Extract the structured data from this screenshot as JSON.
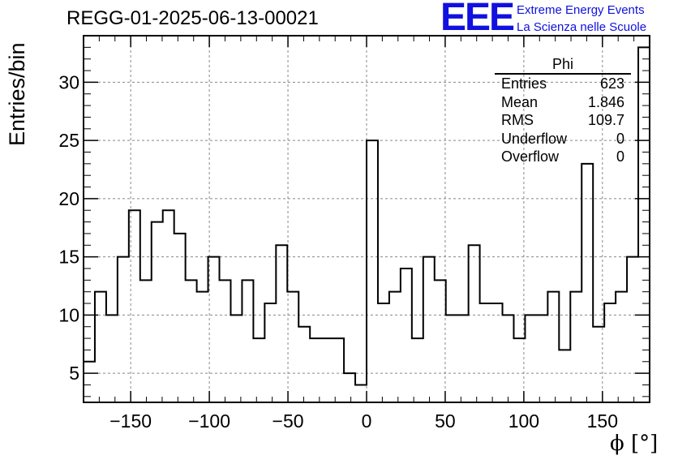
{
  "header": {
    "run_title": "REGG-01-2025-06-13-00021",
    "logo_text": "EEE",
    "logo_line1": "Extreme Energy Events",
    "logo_line2": "La Scienza nelle Scuole"
  },
  "stats_box": {
    "title": "Phi",
    "rows": [
      {
        "label": "Entries",
        "value": "623"
      },
      {
        "label": "Mean",
        "value": "1.846"
      },
      {
        "label": "RMS",
        "value": "109.7"
      },
      {
        "label": "Underflow",
        "value": "0"
      },
      {
        "label": "Overflow",
        "value": "0"
      }
    ]
  },
  "colors": {
    "line": "#000000",
    "grid": "#888888",
    "logo": "#1010e0"
  },
  "chart_data": {
    "type": "histogram",
    "title": "REGG-01-2025-06-13-00021",
    "xlabel": "ϕ [°]",
    "ylabel": "Entries/bin",
    "xlim": [
      -180,
      180
    ],
    "ylim": [
      2.5,
      34
    ],
    "grid": true,
    "bin_width": 7.2,
    "bin_edges_start": -180,
    "values": [
      6,
      12,
      10,
      15,
      19,
      13,
      18,
      19,
      17,
      13,
      12,
      15,
      13,
      10,
      13,
      8,
      11,
      16,
      12,
      9,
      8,
      8,
      8,
      5,
      4,
      25,
      11,
      12,
      14,
      8,
      15,
      13,
      10,
      10,
      16,
      11,
      11,
      10,
      8,
      10,
      10,
      12,
      7,
      12,
      23,
      9,
      11,
      12,
      15,
      33
    ],
    "x_ticks": [
      -150,
      -100,
      -50,
      0,
      50,
      100,
      150
    ],
    "x_tick_labels": [
      "−150",
      "−100",
      "−50",
      "0",
      "50",
      "100",
      "150"
    ],
    "y_ticks": [
      5,
      10,
      15,
      20,
      25,
      30
    ],
    "y_tick_labels": [
      "5",
      "10",
      "15",
      "20",
      "25",
      "30"
    ]
  }
}
